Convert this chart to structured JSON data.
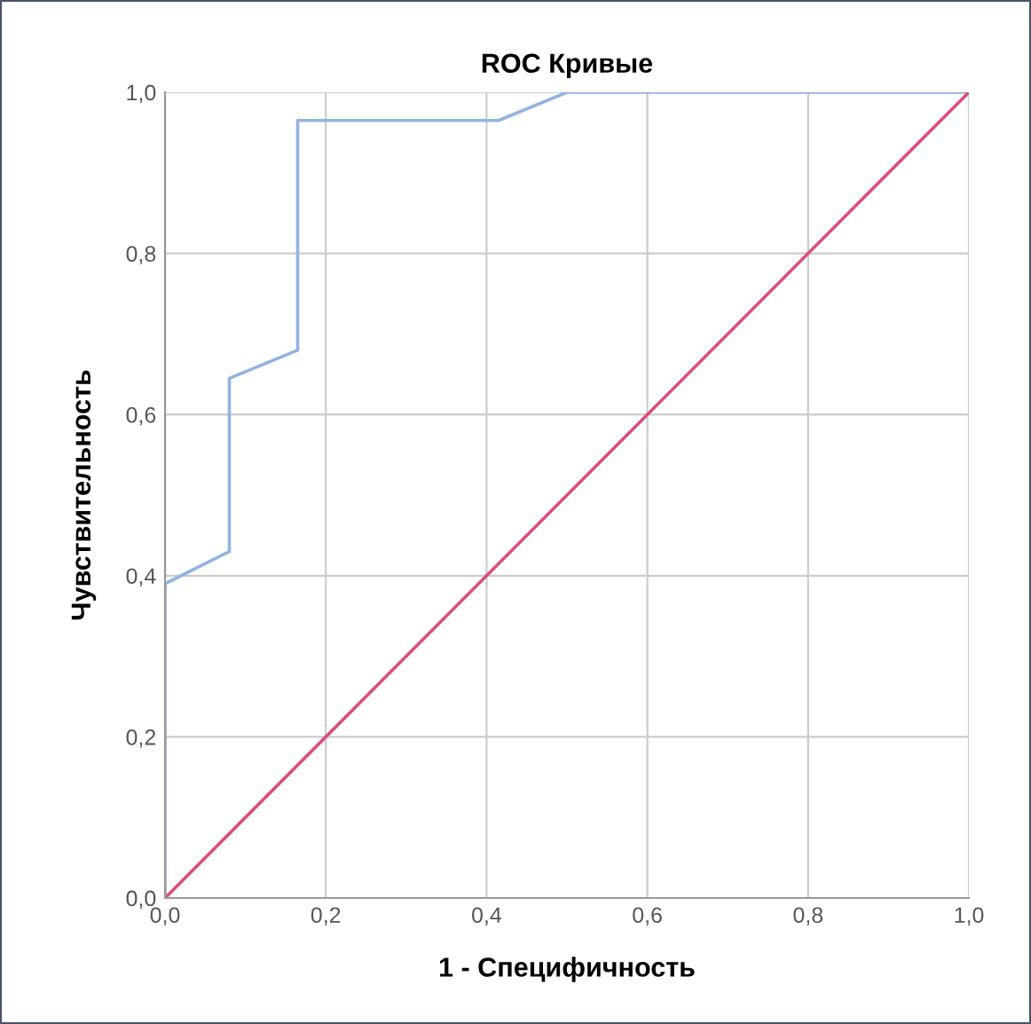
{
  "chart_data": {
    "type": "line",
    "title": "ROC Кривые",
    "xlabel": "1 - Специфичность",
    "ylabel": "Чувствительность",
    "series": [
      {
        "color": "#93b3e0",
        "x": [
          0,
          0,
          0.08,
          0.08,
          0.165,
          0.165,
          0.415,
          0.5,
          1
        ],
        "values": [
          0,
          0.39,
          0.43,
          0.645,
          0.68,
          0.965,
          0.965,
          1,
          1
        ]
      },
      {
        "color": "#d9507a",
        "x": [
          0,
          1
        ],
        "values": [
          0,
          1
        ]
      }
    ],
    "xlim": [
      0,
      1
    ],
    "ylim": [
      0,
      1
    ],
    "xticks": [
      {
        "value": 0,
        "label": "0,0"
      },
      {
        "value": 0.2,
        "label": "0,2"
      },
      {
        "value": 0.4,
        "label": "0,4"
      },
      {
        "value": 0.6,
        "label": "0,6"
      },
      {
        "value": 0.8,
        "label": "0,8"
      },
      {
        "value": 1,
        "label": "1,0"
      }
    ],
    "yticks": [
      {
        "value": 0,
        "label": "0,0"
      },
      {
        "value": 0.2,
        "label": "0,2"
      },
      {
        "value": 0.4,
        "label": "0,4"
      },
      {
        "value": 0.6,
        "label": "0,6"
      },
      {
        "value": 0.8,
        "label": "0,8"
      },
      {
        "value": 1,
        "label": "1,0"
      }
    ],
    "grid": true,
    "legend": false,
    "line_style": "solid",
    "marker": "none"
  }
}
